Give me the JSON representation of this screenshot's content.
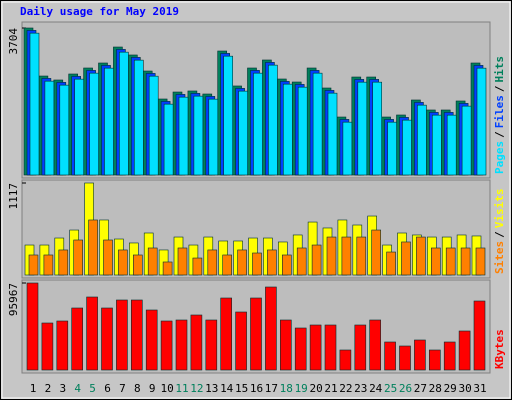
{
  "chart_data": [
    {
      "type": "bar",
      "title": "Daily usage for May 2019",
      "ylim": [
        0,
        3704
      ],
      "yticks": [
        3704
      ],
      "legend_separator": "/",
      "series": [
        {
          "name": "Hits",
          "color": "#00805c",
          "values": [
            3704,
            2494,
            2394,
            2545,
            2696,
            2822,
            3225,
            3024,
            2620,
            1915,
            2091,
            2117,
            2041,
            3124,
            2243,
            2696,
            2898,
            2419,
            2343,
            2696,
            2192,
            1461,
            2469,
            2469,
            1461,
            1512,
            1890,
            1638,
            1638,
            1865,
            2822
          ]
        },
        {
          "name": "Files",
          "color": "#0040ff",
          "values": [
            3644,
            2434,
            2334,
            2485,
            2636,
            2762,
            3165,
            2964,
            2560,
            1855,
            2031,
            2057,
            1981,
            3064,
            2183,
            2636,
            2838,
            2359,
            2283,
            2636,
            2132,
            1401,
            2409,
            2409,
            1401,
            1452,
            1830,
            1578,
            1578,
            1805,
            2762
          ]
        },
        {
          "name": "Pages",
          "color": "#00e0ff",
          "values": [
            3574,
            2364,
            2264,
            2415,
            2566,
            2692,
            3095,
            2894,
            2490,
            1785,
            1961,
            1987,
            1911,
            2994,
            2113,
            2566,
            2768,
            2289,
            2213,
            2566,
            2062,
            1331,
            2339,
            2339,
            1331,
            1382,
            1760,
            1508,
            1508,
            1735,
            2692
          ]
        }
      ]
    },
    {
      "type": "bar",
      "ylim": [
        0,
        1117
      ],
      "yticks": [
        1117
      ],
      "legend_separator": "/",
      "series": [
        {
          "name": "Visits",
          "color": "#ffff00",
          "values": [
            364,
            364,
            449,
            546,
            1117,
            668,
            437,
            389,
            510,
            304,
            461,
            364,
            461,
            413,
            413,
            449,
            449,
            401,
            486,
            643,
            571,
            668,
            607,
            716,
            364,
            510,
            486,
            461,
            461,
            486,
            474
          ]
        },
        {
          "name": "Sites",
          "color": "#ff8000",
          "values": [
            243,
            243,
            304,
            425,
            668,
            425,
            304,
            243,
            328,
            158,
            328,
            206,
            304,
            243,
            304,
            267,
            304,
            243,
            328,
            364,
            461,
            461,
            461,
            546,
            279,
            401,
            461,
            328,
            328,
            328,
            328
          ]
        }
      ]
    },
    {
      "type": "bar",
      "ylim": [
        0,
        95967
      ],
      "yticks": [
        95967
      ],
      "categories": [
        "1",
        "2",
        "3",
        "4",
        "5",
        "6",
        "7",
        "8",
        "9",
        "10",
        "11",
        "12",
        "13",
        "14",
        "15",
        "16",
        "17",
        "18",
        "19",
        "20",
        "21",
        "22",
        "23",
        "24",
        "25",
        "26",
        "27",
        "28",
        "29",
        "30",
        "31"
      ],
      "category_colors": [
        "#000000",
        "#000000",
        "#000000",
        "#00805c",
        "#00805c",
        "#000000",
        "#000000",
        "#000000",
        "#000000",
        "#000000",
        "#00805c",
        "#00805c",
        "#000000",
        "#000000",
        "#000000",
        "#000000",
        "#000000",
        "#00805c",
        "#00805c",
        "#000000",
        "#000000",
        "#000000",
        "#000000",
        "#000000",
        "#00805c",
        "#00805c",
        "#000000",
        "#000000",
        "#000000",
        "#000000",
        "#000000"
      ],
      "series": [
        {
          "name": "KBytes",
          "color": "#ff0000",
          "values": [
            95967,
            51844,
            54051,
            68390,
            80524,
            68390,
            77215,
            77215,
            66184,
            54051,
            55154,
            60669,
            55154,
            79421,
            63978,
            79421,
            91555,
            55154,
            46329,
            49638,
            49638,
            22061,
            49638,
            55154,
            30886,
            26474,
            33092,
            22061,
            30886,
            43020,
            76112
          ]
        }
      ]
    }
  ]
}
